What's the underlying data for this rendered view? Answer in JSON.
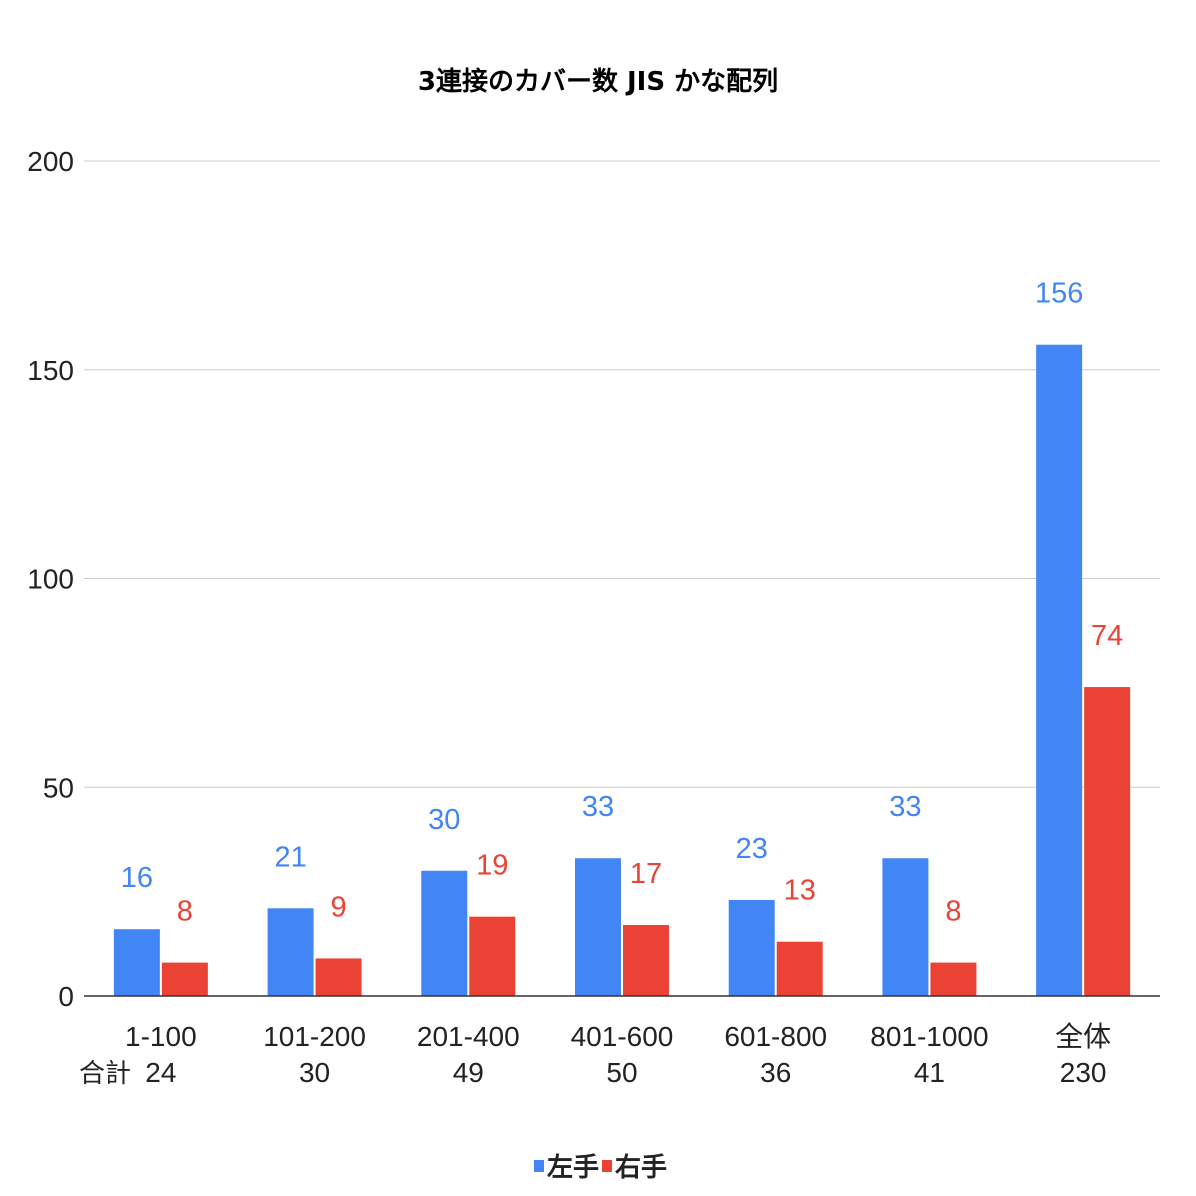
{
  "chart_data": {
    "type": "bar",
    "title": "3連接のカバー数 JIS かな配列",
    "categories": [
      "1-100",
      "101-200",
      "201-400",
      "401-600",
      "601-800",
      "801-1000",
      "全体"
    ],
    "totals_label": "合計",
    "totals": [
      "24",
      "30",
      "49",
      "50",
      "36",
      "41",
      "230"
    ],
    "series": [
      {
        "name": "左手",
        "color": "#4285f4",
        "values": [
          16,
          21,
          30,
          33,
          23,
          33,
          156
        ]
      },
      {
        "name": "右手",
        "color": "#ea4335",
        "values": [
          8,
          9,
          19,
          17,
          13,
          8,
          74
        ]
      }
    ],
    "ylim": [
      0,
      200
    ],
    "yticks": [
      0,
      50,
      100,
      150,
      200
    ],
    "grid": true,
    "legend_position": "bottom"
  }
}
